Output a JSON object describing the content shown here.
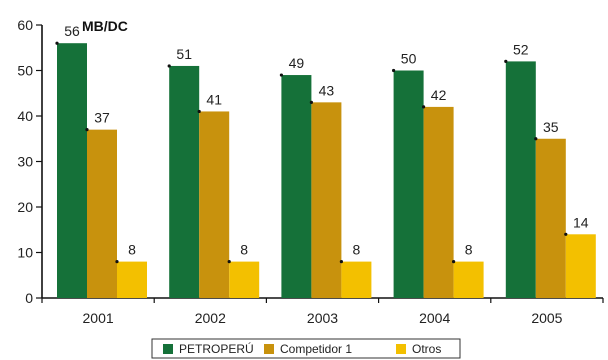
{
  "chart_data": {
    "type": "bar",
    "title": "MB/DC",
    "xlabel": "",
    "ylabel": "",
    "ylim": [
      0,
      60
    ],
    "yticks": [
      0,
      10,
      20,
      30,
      40,
      50,
      60
    ],
    "categories": [
      "2001",
      "2002",
      "2003",
      "2004",
      "2005"
    ],
    "series": [
      {
        "name": "PETROPERÚ",
        "color": "#157139",
        "values": [
          56,
          51,
          49,
          50,
          52
        ],
        "display_values": [
          "56",
          "51",
          "49",
          "50",
          "52"
        ]
      },
      {
        "name": "Competidor 1",
        "color": "#c8920d",
        "values": [
          37,
          41,
          43,
          42,
          35
        ],
        "display_values": [
          "37",
          "41",
          "43",
          "42",
          "35"
        ]
      },
      {
        "name": "Otros",
        "color": "#f3c000",
        "values": [
          8,
          8,
          8,
          8,
          14
        ],
        "display_values": [
          "8",
          "8",
          "8",
          "8",
          "14"
        ]
      }
    ],
    "grid": false,
    "legend_position": "bottom"
  }
}
